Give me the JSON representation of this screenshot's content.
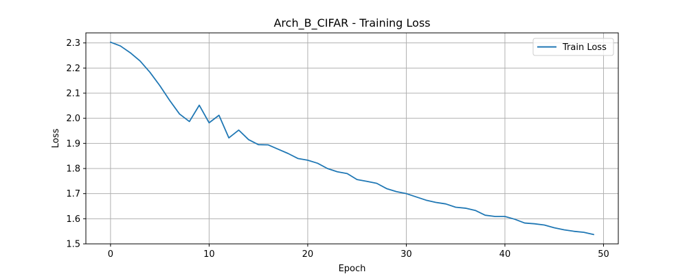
{
  "chart_data": {
    "type": "line",
    "title": "Arch_B_CIFAR - Training Loss",
    "xlabel": "Epoch",
    "ylabel": "Loss",
    "xlim": [
      -2.5,
      51.5
    ],
    "ylim": [
      1.5,
      2.34
    ],
    "xticks": [
      0,
      10,
      20,
      30,
      40,
      50
    ],
    "yticks": [
      1.5,
      1.6,
      1.7,
      1.8,
      1.9,
      2.0,
      2.1,
      2.2,
      2.3
    ],
    "ytick_labels": [
      "1.5",
      "1.6",
      "1.7",
      "1.8",
      "1.9",
      "2.0",
      "2.1",
      "2.2",
      "2.3"
    ],
    "grid": true,
    "legend_position": "top-right",
    "series": [
      {
        "name": "Train Loss",
        "color": "#1f77b4",
        "x": [
          0,
          1,
          2,
          3,
          4,
          5,
          6,
          7,
          8,
          9,
          10,
          11,
          12,
          13,
          14,
          15,
          16,
          17,
          18,
          19,
          20,
          21,
          22,
          23,
          24,
          25,
          26,
          27,
          28,
          29,
          30,
          31,
          32,
          33,
          34,
          35,
          36,
          37,
          38,
          39,
          40,
          41,
          42,
          43,
          44,
          45,
          46,
          47,
          48,
          49
        ],
        "y": [
          2.303,
          2.288,
          2.261,
          2.228,
          2.183,
          2.13,
          2.071,
          2.017,
          1.987,
          2.052,
          1.982,
          2.012,
          1.922,
          1.953,
          1.915,
          1.895,
          1.894,
          1.877,
          1.86,
          1.84,
          1.833,
          1.821,
          1.8,
          1.787,
          1.78,
          1.756,
          1.749,
          1.741,
          1.72,
          1.708,
          1.7,
          1.687,
          1.674,
          1.665,
          1.659,
          1.646,
          1.642,
          1.633,
          1.614,
          1.609,
          1.609,
          1.598,
          1.583,
          1.58,
          1.575,
          1.564,
          1.556,
          1.55,
          1.546,
          1.537
        ]
      }
    ]
  }
}
